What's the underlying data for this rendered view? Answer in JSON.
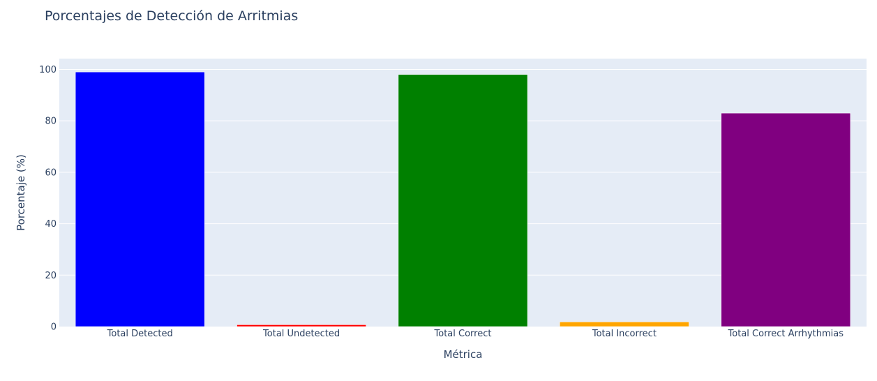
{
  "chart_data": {
    "type": "bar",
    "title": "Porcentajes de Detección de Arritmias",
    "xlabel": "Métrica",
    "ylabel": "Porcentaje (%)",
    "categories": [
      "Total Detected",
      "Total Undetected",
      "Total Correct",
      "Total Incorrect",
      "Total Correct Arrhythmias"
    ],
    "values": [
      99,
      0.7,
      98,
      1.8,
      83
    ],
    "colors": [
      "#0000ff",
      "#ff0000",
      "#008000",
      "#ffa500",
      "#800080"
    ],
    "ylim": [
      0,
      104.2
    ],
    "yticks": [
      0,
      20,
      40,
      60,
      80,
      100
    ],
    "grid": true,
    "legend": "none",
    "plot_background": "#e5ecf6",
    "gridline_color": "#ffffff",
    "text_color": "#2a3f5f"
  }
}
